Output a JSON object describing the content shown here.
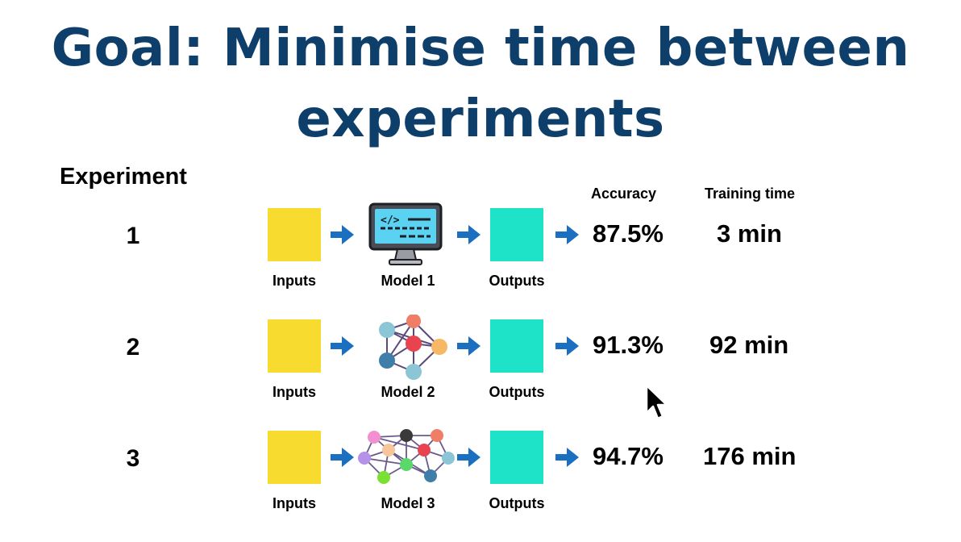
{
  "title": {
    "line1": "Goal: Minimise time between",
    "line2": "experiments",
    "color": "#0e3f6b"
  },
  "headers": {
    "experiment": "Experiment",
    "accuracy": "Accuracy",
    "training_time": "Training time"
  },
  "colors": {
    "input_box": "#f7dc2f",
    "output_box": "#1ee3c8",
    "arrow": "#1a6fc1"
  },
  "experiments": [
    {
      "number": "1",
      "input_label": "Inputs",
      "model_label": "Model 1",
      "output_label": "Outputs",
      "accuracy": "87.5%",
      "training_time": "3 min",
      "model_icon": "computer-code-icon"
    },
    {
      "number": "2",
      "input_label": "Inputs",
      "model_label": "Model 2",
      "output_label": "Outputs",
      "accuracy": "91.3%",
      "training_time": "92 min",
      "model_icon": "small-neural-network-icon"
    },
    {
      "number": "3",
      "input_label": "Inputs",
      "model_label": "Model 3",
      "output_label": "Outputs",
      "accuracy": "94.7%",
      "training_time": "176 min",
      "model_icon": "large-neural-network-icon"
    }
  ]
}
